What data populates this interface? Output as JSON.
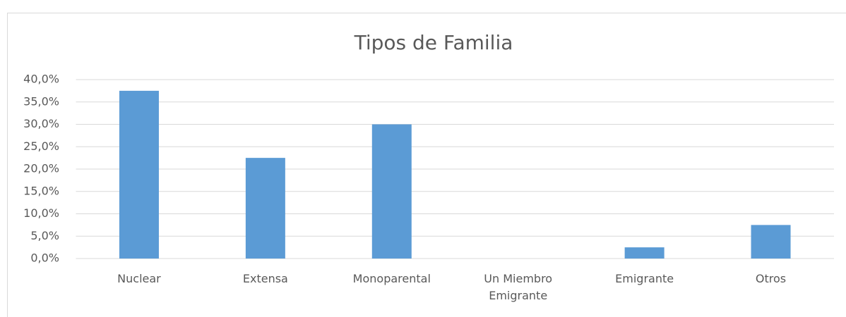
{
  "chart_data": {
    "type": "bar",
    "title": "Tipos de Familia",
    "categories": [
      "Nuclear",
      "Extensa",
      "Monoparental",
      "Un Miembro Emigrante",
      "Emigrante",
      "Otros"
    ],
    "values": [
      37.5,
      22.5,
      30,
      0,
      2.5,
      7.5
    ],
    "color": "#5b9bd5",
    "ylim": [
      0,
      40
    ],
    "yticks": [
      {
        "value": 0,
        "label": "0,0%"
      },
      {
        "value": 5,
        "label": "5,0%"
      },
      {
        "value": 10,
        "label": "10,0%"
      },
      {
        "value": 15,
        "label": "15,0%"
      },
      {
        "value": 20,
        "label": "20,0%"
      },
      {
        "value": 25,
        "label": "25,0%"
      },
      {
        "value": 30,
        "label": "30,0%"
      },
      {
        "value": 35,
        "label": "35,0%"
      },
      {
        "value": 40,
        "label": "40,0%"
      }
    ],
    "grid": true
  }
}
